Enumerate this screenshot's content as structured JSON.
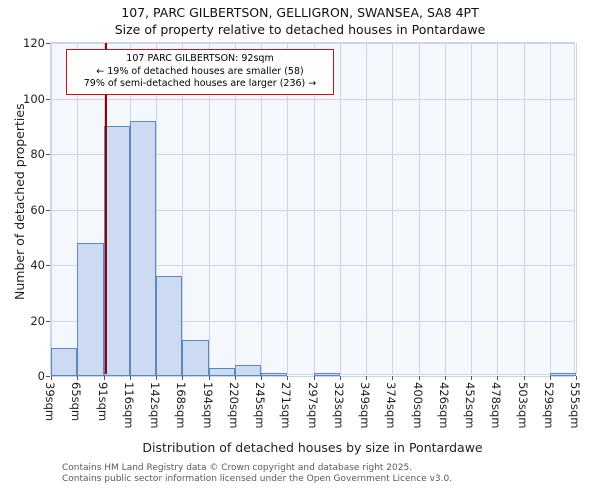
{
  "chart_data": {
    "type": "bar",
    "title": "107, PARC GILBERTSON, GELLIGRON, SWANSEA, SA8 4PT",
    "subtitle": "Size of property relative to detached houses in Pontardawe",
    "xlabel": "Distribution of detached houses by size in Pontardawe",
    "ylabel": "Number of detached properties",
    "categories": [
      "39sqm",
      "65sqm",
      "91sqm",
      "116sqm",
      "142sqm",
      "168sqm",
      "194sqm",
      "220sqm",
      "245sqm",
      "271sqm",
      "297sqm",
      "323sqm",
      "349sqm",
      "374sqm",
      "400sqm",
      "426sqm",
      "452sqm",
      "478sqm",
      "503sqm",
      "529sqm",
      "555sqm"
    ],
    "values": [
      10,
      48,
      90,
      92,
      36,
      13,
      3,
      4,
      1,
      0,
      1,
      0,
      0,
      0,
      0,
      0,
      0,
      0,
      0,
      1
    ],
    "ylim": [
      0,
      120
    ],
    "yticks": [
      0,
      20,
      40,
      60,
      80,
      100,
      120
    ],
    "grid": true,
    "x_min": 39,
    "x_max": 555,
    "marker_value": 92,
    "marker_color": "#9b0000",
    "bar_fill": "#ccdbf1",
    "bar_border": "#5b87c5",
    "grid_color": "#ccd5e6",
    "plot_bg": "#f4f7fc"
  },
  "annotation": {
    "line1": "107 PARC GILBERTSON: 92sqm",
    "line2": "← 19% of detached houses are smaller (58)",
    "line3": "79% of semi-detached houses are larger (236) →",
    "border_color": "#cf1010"
  },
  "footer": {
    "line1": "Contains HM Land Registry data © Crown copyright and database right 2025.",
    "line2": "Contains public sector information licensed under the Open Government Licence v3.0."
  }
}
